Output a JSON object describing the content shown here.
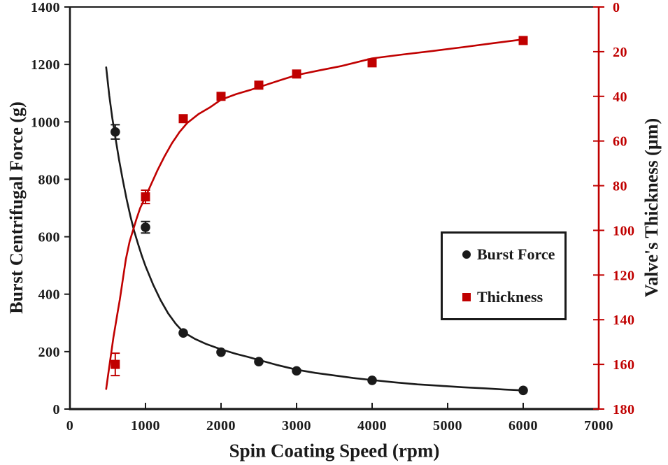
{
  "figure": {
    "background": "#ffffff"
  },
  "chart_data": {
    "type": "scatter",
    "title": "",
    "xlabel": "Spin Coating Speed (rpm)",
    "ylabel_left": "Burst Centrifugal Force (g)",
    "ylabel_right": "Valve's Thickness (µm)",
    "grid": false,
    "x_axis": {
      "min": 0,
      "max": 7000,
      "ticks": [
        0,
        1000,
        2000,
        3000,
        4000,
        5000,
        6000,
        7000
      ]
    },
    "y_axis_left": {
      "min": 0,
      "max": 1400,
      "ticks": [
        0,
        200,
        400,
        600,
        800,
        1000,
        1200,
        1400
      ],
      "color": "#1a1a1a"
    },
    "y_axis_right": {
      "min": 0,
      "max": 180,
      "ticks": [
        0,
        20,
        40,
        60,
        80,
        100,
        120,
        140,
        160,
        180
      ],
      "color": "#c00000",
      "inverted": true
    },
    "legend": {
      "position": "middle-right",
      "border": true,
      "items": [
        {
          "label": "Burst Force",
          "marker": "circle",
          "color": "#1a1a1a"
        },
        {
          "label": "Thickness",
          "marker": "square",
          "color": "#c00000"
        }
      ]
    },
    "series": [
      {
        "name": "Burst Force",
        "axis": "left",
        "marker": "circle",
        "color": "#1a1a1a",
        "points": [
          {
            "x": 600,
            "y": 965,
            "err": 25
          },
          {
            "x": 1000,
            "y": 633,
            "err": 20
          },
          {
            "x": 1500,
            "y": 265,
            "err": 0
          },
          {
            "x": 2000,
            "y": 198,
            "err": 0
          },
          {
            "x": 2500,
            "y": 165,
            "err": 0
          },
          {
            "x": 3000,
            "y": 133,
            "err": 0
          },
          {
            "x": 4000,
            "y": 100,
            "err": 0
          },
          {
            "x": 6000,
            "y": 65,
            "err": 0
          }
        ],
        "trend": [
          [
            480,
            1190
          ],
          [
            520,
            1092
          ],
          [
            560,
            1014
          ],
          [
            600,
            948
          ],
          [
            650,
            868
          ],
          [
            700,
            797
          ],
          [
            750,
            731
          ],
          [
            800,
            672
          ],
          [
            850,
            620
          ],
          [
            900,
            576
          ],
          [
            950,
            535
          ],
          [
            1000,
            498
          ],
          [
            1100,
            434
          ],
          [
            1200,
            379
          ],
          [
            1300,
            333
          ],
          [
            1400,
            297
          ],
          [
            1500,
            268
          ],
          [
            1650,
            245
          ],
          [
            1800,
            227
          ],
          [
            2000,
            208
          ],
          [
            2200,
            192
          ],
          [
            2350,
            182
          ],
          [
            2500,
            171
          ],
          [
            2750,
            153
          ],
          [
            3000,
            137
          ],
          [
            3250,
            126
          ],
          [
            3500,
            117
          ],
          [
            3750,
            108
          ],
          [
            4000,
            101
          ],
          [
            4300,
            93
          ],
          [
            4600,
            86
          ],
          [
            4900,
            81
          ],
          [
            5200,
            76
          ],
          [
            5500,
            72
          ],
          [
            5750,
            68
          ],
          [
            6000,
            65
          ]
        ]
      },
      {
        "name": "Thickness",
        "axis": "right",
        "marker": "square",
        "color": "#c00000",
        "points": [
          {
            "x": 600,
            "y": 160,
            "err": 5
          },
          {
            "x": 1000,
            "y": 85,
            "err": 3
          },
          {
            "x": 1500,
            "y": 50,
            "err": 0
          },
          {
            "x": 2000,
            "y": 40,
            "err": 0
          },
          {
            "x": 2500,
            "y": 35,
            "err": 0
          },
          {
            "x": 3000,
            "y": 30,
            "err": 0
          },
          {
            "x": 4000,
            "y": 25,
            "err": 0
          },
          {
            "x": 6000,
            "y": 15,
            "err": 0
          }
        ],
        "trend": [
          [
            480,
            171
          ],
          [
            500,
            166
          ],
          [
            525,
            160
          ],
          [
            550,
            154
          ],
          [
            575,
            148
          ],
          [
            600,
            143
          ],
          [
            630,
            137
          ],
          [
            660,
            131
          ],
          [
            700,
            122
          ],
          [
            740,
            113
          ],
          [
            790,
            105
          ],
          [
            835,
            100
          ],
          [
            880,
            95
          ],
          [
            930,
            90
          ],
          [
            1000,
            85
          ],
          [
            1080,
            79
          ],
          [
            1160,
            73
          ],
          [
            1250,
            67
          ],
          [
            1350,
            61
          ],
          [
            1450,
            56
          ],
          [
            1550,
            52
          ],
          [
            1700,
            48
          ],
          [
            1850,
            45
          ],
          [
            2000,
            41.5
          ],
          [
            2200,
            39
          ],
          [
            2400,
            37
          ],
          [
            2600,
            34.8
          ],
          [
            2800,
            32.6
          ],
          [
            3000,
            30.5
          ],
          [
            3300,
            28.4
          ],
          [
            3600,
            26.4
          ],
          [
            4000,
            23
          ],
          [
            4400,
            21.3
          ],
          [
            4800,
            19.7
          ],
          [
            5200,
            18
          ],
          [
            5600,
            16.2
          ],
          [
            6000,
            14.5
          ]
        ]
      }
    ]
  }
}
